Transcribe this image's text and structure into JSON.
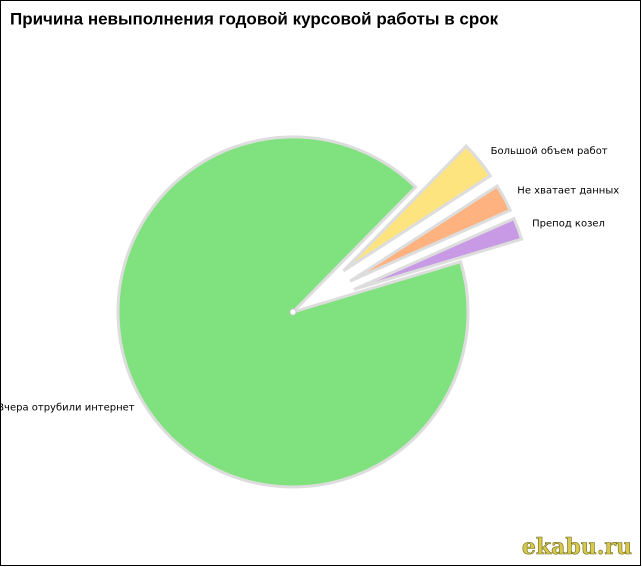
{
  "chart_data": {
    "type": "pie",
    "title": "Причина невыполнения годовой курсовой работы в срок",
    "categories": [
      "Большой объем работ",
      "Не хватает данных",
      "Препод козел",
      "Вчера отрубили интернет"
    ],
    "values": [
      3.5,
      2.5,
      2,
      92
    ],
    "colors": [
      "#fde47f",
      "#fdb27f",
      "#c89ae6",
      "#80e27e"
    ],
    "watermark": "ekabu.ru"
  }
}
